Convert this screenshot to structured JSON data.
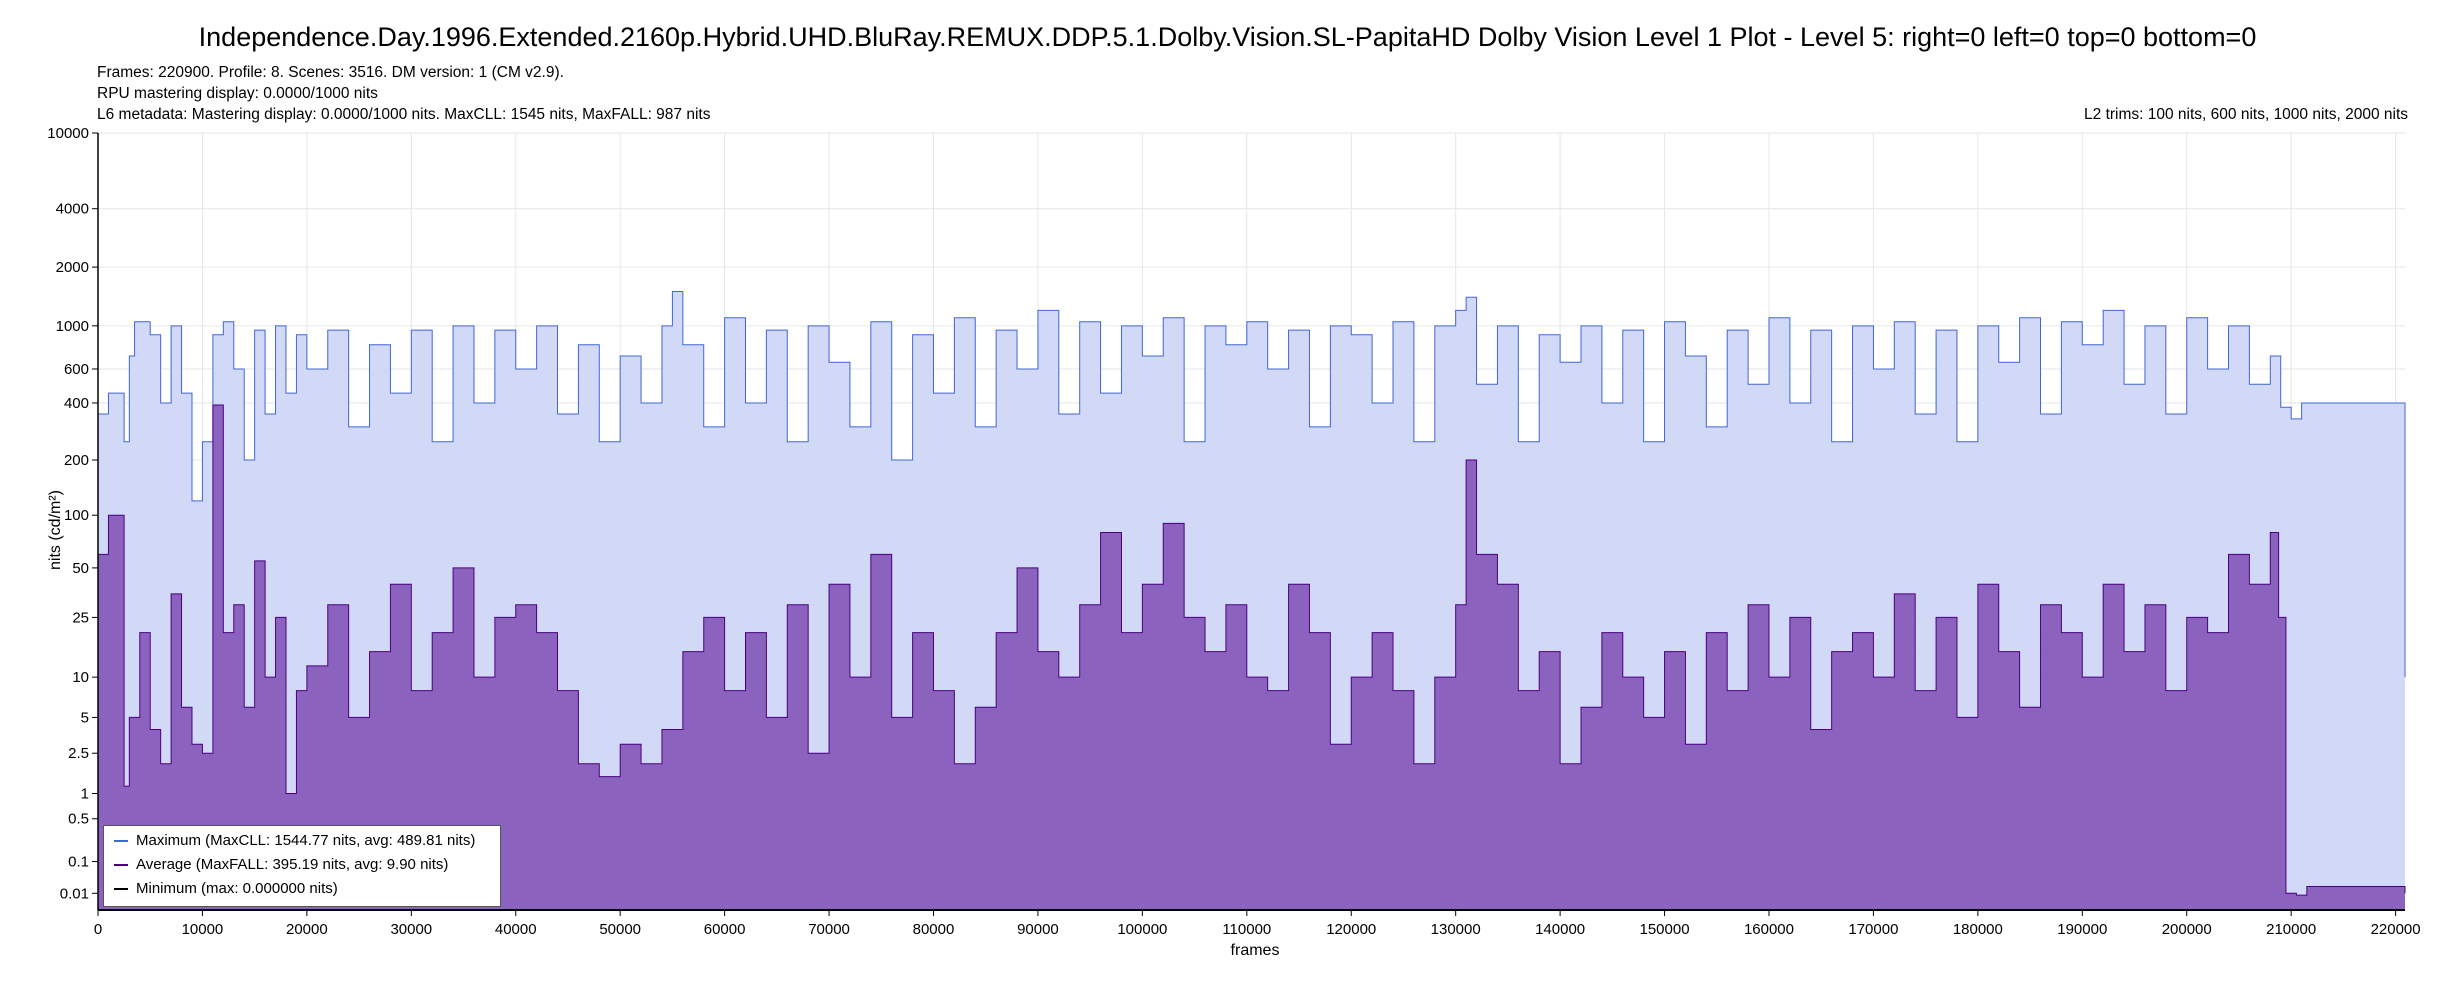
{
  "header": {
    "title": "Independence.Day.1996.Extended.2160p.Hybrid.UHD.BluRay.REMUX.DDP.5.1.Dolby.Vision.SL-PapitaHD Dolby Vision Level 1 Plot   -   Level 5: right=0 left=0 top=0 bottom=0",
    "info_line_1": "Frames: 220900. Profile: 8. Scenes: 3516. DM version: 1 (CM v2.9).",
    "info_line_2": "RPU mastering display: 0.0000/1000 nits",
    "info_line_3": "L6 metadata: Mastering display: 0.0000/1000 nits. MaxCLL: 1545 nits, MaxFALL: 987 nits",
    "l2_trims": "L2 trims: 100 nits, 600 nits, 1000 nits, 2000 nits"
  },
  "chart_data": {
    "type": "area",
    "title": "Independence.Day.1996.Extended.2160p.Hybrid.UHD.BluRay.REMUX.DDP.5.1.Dolby.Vision.SL-PapitaHD Dolby Vision Level 1 Plot   -   Level 5: right=0 left=0 top=0 bottom=0",
    "xlabel": "frames",
    "ylabel": "nits (cd/m²)",
    "xlim": [
      0,
      220900
    ],
    "ylim": [
      0,
      10000
    ],
    "y_scale": "perceptual (PQ)",
    "x_ticks": [
      0,
      10000,
      20000,
      30000,
      40000,
      50000,
      60000,
      70000,
      80000,
      90000,
      100000,
      110000,
      120000,
      130000,
      140000,
      150000,
      160000,
      170000,
      180000,
      190000,
      200000,
      210000,
      220000
    ],
    "x_tick_labels": [
      "0",
      "10000",
      "20000",
      "30000",
      "40000",
      "50000",
      "60000",
      "70000",
      "80000",
      "90000",
      "100000",
      "110000",
      "120000",
      "130000",
      "140000",
      "150000",
      "160000",
      "170000",
      "180000",
      "190000",
      "200000",
      "210000",
      "220000"
    ],
    "y_ticks": [
      0.01,
      0.1,
      0.5,
      1,
      2.5,
      5,
      10,
      25,
      50,
      100,
      200,
      400,
      600,
      1000,
      2000,
      4000,
      10000
    ],
    "y_tick_labels": [
      "0.01",
      "0.1",
      "0.5",
      "1",
      "2.5",
      "5",
      "10",
      "25",
      "50",
      "100",
      "200",
      "400",
      "600",
      "1000",
      "2000",
      "4000",
      "10000"
    ],
    "grid": true,
    "legend_position": "bottom-left",
    "series": [
      {
        "name": "Maximum (MaxCLL: 1544.77 nits, avg: 489.81 nits)",
        "color": "#4166d5",
        "fill": "#d1d9f7",
        "x": [
          0,
          1000,
          2500,
          3000,
          3500,
          5000,
          6000,
          7000,
          8000,
          9000,
          10000,
          11000,
          12000,
          13000,
          14000,
          15000,
          16000,
          17000,
          18000,
          19000,
          20000,
          22000,
          24000,
          26000,
          28000,
          30000,
          32000,
          34000,
          36000,
          38000,
          40000,
          42000,
          44000,
          46000,
          48000,
          50000,
          52000,
          54000,
          55000,
          56000,
          58000,
          60000,
          62000,
          64000,
          66000,
          68000,
          70000,
          72000,
          74000,
          76000,
          78000,
          80000,
          82000,
          84000,
          86000,
          88000,
          90000,
          92000,
          94000,
          96000,
          98000,
          100000,
          102000,
          104000,
          106000,
          108000,
          110000,
          112000,
          114000,
          116000,
          118000,
          120000,
          122000,
          124000,
          126000,
          128000,
          130000,
          131000,
          132000,
          134000,
          136000,
          138000,
          140000,
          142000,
          144000,
          146000,
          148000,
          150000,
          152000,
          154000,
          156000,
          158000,
          160000,
          162000,
          164000,
          166000,
          168000,
          170000,
          172000,
          174000,
          176000,
          178000,
          180000,
          182000,
          184000,
          186000,
          188000,
          190000,
          192000,
          194000,
          196000,
          198000,
          200000,
          202000,
          204000,
          206000,
          208000,
          209000,
          210000,
          211000,
          212000,
          216000,
          220000,
          220900
        ],
        "values": [
          350,
          450,
          250,
          700,
          1050,
          900,
          400,
          1000,
          450,
          120,
          250,
          900,
          1050,
          600,
          200,
          950,
          350,
          1000,
          450,
          900,
          600,
          950,
          300,
          800,
          450,
          950,
          250,
          1000,
          400,
          950,
          600,
          1000,
          350,
          800,
          250,
          700,
          400,
          1000,
          1500,
          800,
          300,
          1100,
          400,
          950,
          250,
          1000,
          650,
          300,
          1050,
          200,
          900,
          450,
          1100,
          300,
          950,
          600,
          1200,
          350,
          1050,
          450,
          1000,
          700,
          1100,
          250,
          1000,
          800,
          1050,
          600,
          950,
          300,
          1000,
          900,
          400,
          1050,
          250,
          1000,
          1200,
          1400,
          500,
          1000,
          250,
          900,
          650,
          1000,
          400,
          950,
          250,
          1050,
          700,
          300,
          950,
          500,
          1100,
          400,
          950,
          250,
          1000,
          600,
          1050,
          350,
          950,
          250,
          1000,
          650,
          1100,
          350,
          1050,
          800,
          1200,
          500,
          1000,
          350,
          1100,
          600,
          1000,
          500,
          700,
          380,
          330,
          400,
          400,
          400,
          400,
          10
        ],
        "avg": 489.81,
        "max": 1544.77
      },
      {
        "name": "Average (MaxFALL: 395.19 nits, avg: 9.90 nits)",
        "color": "#4b0082",
        "fill": "#8b63be",
        "x": [
          0,
          1000,
          2500,
          3000,
          4000,
          5000,
          6000,
          7000,
          8000,
          9000,
          10000,
          11000,
          12000,
          13000,
          14000,
          15000,
          16000,
          17000,
          18000,
          19000,
          20000,
          22000,
          24000,
          26000,
          28000,
          30000,
          32000,
          34000,
          36000,
          38000,
          40000,
          42000,
          44000,
          46000,
          48000,
          50000,
          52000,
          54000,
          56000,
          58000,
          60000,
          62000,
          64000,
          66000,
          68000,
          70000,
          72000,
          74000,
          76000,
          78000,
          80000,
          82000,
          84000,
          86000,
          88000,
          90000,
          92000,
          94000,
          96000,
          98000,
          100000,
          102000,
          104000,
          106000,
          108000,
          110000,
          112000,
          114000,
          116000,
          118000,
          120000,
          122000,
          124000,
          126000,
          128000,
          130000,
          131000,
          132000,
          134000,
          136000,
          138000,
          140000,
          142000,
          144000,
          146000,
          148000,
          150000,
          152000,
          154000,
          156000,
          158000,
          160000,
          162000,
          164000,
          166000,
          168000,
          170000,
          172000,
          174000,
          176000,
          178000,
          180000,
          182000,
          184000,
          186000,
          188000,
          190000,
          192000,
          194000,
          196000,
          198000,
          200000,
          202000,
          204000,
          206000,
          208000,
          208800,
          209500,
          210500,
          211500,
          216000,
          220000,
          220900
        ],
        "values": [
          60,
          100,
          1.2,
          5,
          20,
          4,
          2,
          35,
          6,
          3,
          2.5,
          390,
          20,
          30,
          6,
          55,
          10,
          25,
          1,
          8,
          12,
          30,
          5,
          15,
          40,
          8,
          20,
          50,
          10,
          25,
          30,
          20,
          8,
          2,
          1.5,
          3,
          2,
          4,
          15,
          25,
          8,
          20,
          5,
          30,
          2.5,
          40,
          10,
          60,
          5,
          20,
          8,
          2,
          6,
          20,
          50,
          15,
          10,
          30,
          80,
          20,
          40,
          90,
          25,
          15,
          30,
          10,
          8,
          40,
          20,
          3,
          10,
          20,
          8,
          2,
          10,
          30,
          200,
          60,
          40,
          8,
          15,
          2,
          6,
          20,
          10,
          5,
          15,
          3,
          20,
          8,
          30,
          10,
          25,
          4,
          15,
          20,
          10,
          35,
          8,
          25,
          5,
          40,
          15,
          6,
          30,
          20,
          10,
          40,
          15,
          30,
          8,
          25,
          20,
          60,
          40,
          80,
          25,
          0.01,
          0.008,
          0.02,
          0.02,
          0.02,
          0.01
        ],
        "avg": 9.9,
        "max": 395.19
      },
      {
        "name": "Minimum (max: 0.000000 nits)",
        "color": "#000000",
        "x": [
          0,
          220900
        ],
        "values": [
          0,
          0
        ],
        "max": 0
      }
    ]
  }
}
